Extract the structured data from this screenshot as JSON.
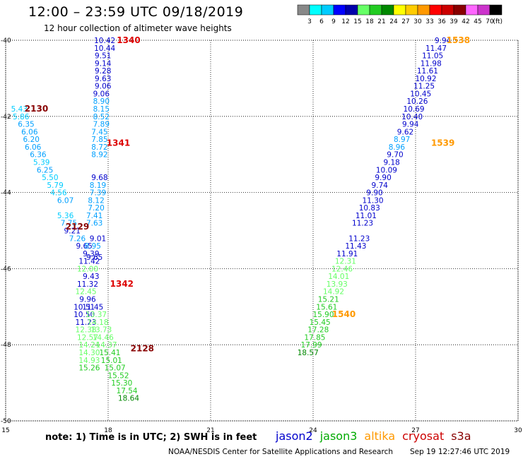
{
  "title": "12:00 – 23:59 UTC 09/18/2019",
  "subtitle": "12 hour collection of altimeter wave heights",
  "note": "note:  1) Time is in UTC;  2) SWH is in feet",
  "credit": "NOAA/NESDIS Center for Satellite Applications and Research",
  "timestamp": "Sep 19 12:27:46 UTC 2019",
  "legend": [
    {
      "name": "jason2",
      "color": "#0000cc"
    },
    {
      "name": "jason3",
      "color": "#00aa00"
    },
    {
      "name": "altika",
      "color": "#ff9900"
    },
    {
      "name": "cryosat",
      "color": "#cc0000"
    },
    {
      "name": "s3a",
      "color": "#880000"
    }
  ],
  "colorbar": {
    "unit": "(ft)",
    "labels": [
      "3",
      "6",
      "9",
      "12",
      "15",
      "18",
      "21",
      "24",
      "27",
      "30",
      "33",
      "36",
      "39",
      "42",
      "45",
      "70"
    ],
    "colors": [
      "#888888",
      "#00ffff",
      "#00ccff",
      "#0000ff",
      "#0000aa",
      "#66ff66",
      "#22cc22",
      "#008800",
      "#ffff00",
      "#ffcc00",
      "#ff9900",
      "#ff0000",
      "#cc0000",
      "#880000",
      "#ff66ff",
      "#cc33cc",
      "#000000"
    ]
  },
  "chart_data": {
    "type": "scatter",
    "xlim": [
      15,
      30
    ],
    "ylim": [
      -50,
      -40
    ],
    "xticks": [
      "15",
      "18",
      "21",
      "24",
      "27",
      "30"
    ],
    "yticks": [
      "-40",
      "-42",
      "-44",
      "-46",
      "-48",
      "-50"
    ],
    "grid": true,
    "times": [
      {
        "label": "1340",
        "x": 18.6,
        "y": -40.0,
        "color": "#dd0000"
      },
      {
        "label": "2130",
        "x": 15.9,
        "y": -41.8,
        "color": "#880000"
      },
      {
        "label": "1341",
        "x": 18.3,
        "y": -42.7,
        "color": "#dd0000"
      },
      {
        "label": "2129",
        "x": 17.1,
        "y": -44.9,
        "color": "#880000"
      },
      {
        "label": "1342",
        "x": 18.4,
        "y": -46.4,
        "color": "#dd0000"
      },
      {
        "label": "2128",
        "x": 19.0,
        "y": -48.1,
        "color": "#880000"
      },
      {
        "label": "1538",
        "x": 28.25,
        "y": -40.0,
        "color": "#ff9900"
      },
      {
        "label": "1539",
        "x": 27.8,
        "y": -42.7,
        "color": "#ff9900"
      },
      {
        "label": "1540",
        "x": 24.9,
        "y": -47.2,
        "color": "#ff9900"
      }
    ],
    "series": [
      {
        "name": "jason2",
        "points": [
          [
            "10.42",
            17.9,
            -40.0
          ],
          [
            "10.44",
            17.9,
            -40.2
          ],
          [
            "9.51",
            17.85,
            -40.4
          ],
          [
            "9.14",
            17.85,
            -40.6
          ],
          [
            "9.28",
            17.85,
            -40.8
          ],
          [
            "9.63",
            17.85,
            -41.0
          ],
          [
            "9.06",
            17.85,
            -41.2
          ],
          [
            "9.06",
            17.8,
            -41.4
          ],
          [
            "8.90",
            17.8,
            -41.6
          ],
          [
            "9.68",
            17.75,
            -43.6
          ],
          [
            "9.01",
            17.7,
            -45.2
          ],
          [
            "9.65",
            17.6,
            -45.7
          ]
        ]
      },
      {
        "name": "s3a",
        "points": [
          [
            "5.43",
            15.4,
            -41.8
          ],
          [
            "5.86",
            15.45,
            -42.0
          ],
          [
            "6.35",
            15.6,
            -42.2
          ],
          [
            "6.06",
            15.7,
            -42.4
          ],
          [
            "6.20",
            15.75,
            -42.6
          ],
          [
            "6.06",
            15.8,
            -42.8
          ],
          [
            "6.36",
            15.95,
            -43.0
          ],
          [
            "5.39",
            16.05,
            -43.2
          ],
          [
            "6.25",
            16.15,
            -43.4
          ],
          [
            "5.50",
            16.3,
            -43.6
          ],
          [
            "5.79",
            16.45,
            -43.8
          ],
          [
            "4.56",
            16.55,
            -44.0
          ],
          [
            "6.07",
            16.75,
            -44.2
          ],
          [
            "5.36",
            16.75,
            -44.6
          ],
          [
            "7.75",
            16.85,
            -44.8
          ],
          [
            "9.21",
            16.95,
            -45.0
          ],
          [
            "7.26",
            17.1,
            -45.2
          ],
          [
            "9.65",
            17.3,
            -45.4
          ],
          [
            "11.42",
            17.45,
            -45.8
          ],
          [
            "12.00",
            17.4,
            -46.0
          ],
          [
            "10.51",
            17.3,
            -47.0
          ],
          [
            "10.50",
            17.3,
            -47.2
          ],
          [
            "11.23",
            17.35,
            -47.4
          ],
          [
            "12.38",
            17.35,
            -47.6
          ],
          [
            "12.57",
            17.4,
            -47.8
          ],
          [
            "14.24",
            17.45,
            -48.0
          ],
          [
            "14.30",
            17.45,
            -48.2
          ],
          [
            "14.93",
            17.45,
            -48.4
          ],
          [
            "15.26",
            17.45,
            -48.6
          ]
        ]
      },
      {
        "name": "cryosat",
        "points": [
          [
            "8.15",
            17.8,
            -41.8
          ],
          [
            "8.52",
            17.8,
            -42.0
          ],
          [
            "7.89",
            17.8,
            -42.2
          ],
          [
            "7.45",
            17.75,
            -42.4
          ],
          [
            "7.85",
            17.75,
            -42.6
          ],
          [
            "8.72",
            17.75,
            -42.8
          ],
          [
            "8.92",
            17.75,
            -43.0
          ],
          [
            "8.19",
            17.7,
            -43.8
          ],
          [
            "7.39",
            17.7,
            -44.0
          ],
          [
            "8.12",
            17.65,
            -44.2
          ],
          [
            "7.20",
            17.65,
            -44.4
          ],
          [
            "7.41",
            17.6,
            -44.6
          ],
          [
            "7.63",
            17.6,
            -44.8
          ],
          [
            "8.95",
            17.55,
            -45.4
          ],
          [
            "9.39",
            17.5,
            -45.6
          ],
          [
            "9.43",
            17.5,
            -46.2
          ],
          [
            "9.96",
            17.4,
            -46.8
          ],
          [
            "12.45",
            17.35,
            -46.6
          ],
          [
            "11.32",
            17.4,
            -46.4
          ],
          [
            "11.45",
            17.55,
            -47.0
          ],
          [
            "13.37",
            17.65,
            -47.2
          ],
          [
            "14.18",
            17.7,
            -47.4
          ],
          [
            "13.73",
            17.8,
            -47.6
          ],
          [
            "14.46",
            17.85,
            -47.8
          ],
          [
            "14.37",
            17.95,
            -48.0
          ],
          [
            "15.41",
            18.05,
            -48.2
          ],
          [
            "15.01",
            18.1,
            -48.4
          ],
          [
            "15.07",
            18.2,
            -48.6
          ],
          [
            "15.52",
            18.3,
            -48.8
          ],
          [
            "15.30",
            18.4,
            -49.0
          ],
          [
            "17.54",
            18.55,
            -49.2
          ],
          [
            "18.64",
            18.6,
            -49.4
          ]
        ]
      },
      {
        "name": "altika",
        "points": [
          [
            "9.94",
            27.8,
            -40.0
          ],
          [
            "11.47",
            27.6,
            -40.2
          ],
          [
            "11.05",
            27.5,
            -40.4
          ],
          [
            "11.98",
            27.45,
            -40.6
          ],
          [
            "11.61",
            27.35,
            -40.8
          ],
          [
            "10.92",
            27.3,
            -41.0
          ],
          [
            "11.25",
            27.25,
            -41.2
          ],
          [
            "10.45",
            27.15,
            -41.4
          ],
          [
            "10.26",
            27.05,
            -41.6
          ],
          [
            "10.69",
            26.95,
            -41.8
          ],
          [
            "10.40",
            26.9,
            -42.0
          ],
          [
            "9.94",
            26.85,
            -42.2
          ],
          [
            "9.62",
            26.7,
            -42.4
          ],
          [
            "8.97",
            26.6,
            -42.6
          ],
          [
            "8.96",
            26.45,
            -42.8
          ],
          [
            "9.70",
            26.4,
            -43.0
          ],
          [
            "9.18",
            26.3,
            -43.2
          ],
          [
            "10.09",
            26.15,
            -43.4
          ],
          [
            "9.90",
            26.05,
            -43.6
          ],
          [
            "9.74",
            25.95,
            -43.8
          ],
          [
            "9.90",
            25.8,
            -44.0
          ],
          [
            "11.30",
            25.75,
            -44.2
          ],
          [
            "10.83",
            25.65,
            -44.4
          ],
          [
            "11.01",
            25.55,
            -44.6
          ],
          [
            "11.23",
            25.45,
            -44.8
          ],
          [
            "11.23",
            25.35,
            -45.2
          ],
          [
            "11.43",
            25.25,
            -45.4
          ],
          [
            "11.91",
            25.0,
            -45.6
          ],
          [
            "12.31",
            24.95,
            -45.8
          ],
          [
            "12.46",
            24.85,
            -46.0
          ],
          [
            "14.01",
            24.75,
            -46.2
          ],
          [
            "13.93",
            24.7,
            -46.4
          ],
          [
            "14.92",
            24.6,
            -46.6
          ],
          [
            "15.21",
            24.45,
            -46.8
          ],
          [
            "15.61",
            24.4,
            -47.0
          ],
          [
            "15.90",
            24.3,
            -47.2
          ],
          [
            "15.45",
            24.2,
            -47.4
          ],
          [
            "17.28",
            24.15,
            -47.6
          ],
          [
            "17.85",
            24.05,
            -47.8
          ],
          [
            "17.99",
            23.95,
            -48.0
          ],
          [
            "18.57",
            23.85,
            -48.2
          ]
        ]
      }
    ]
  }
}
